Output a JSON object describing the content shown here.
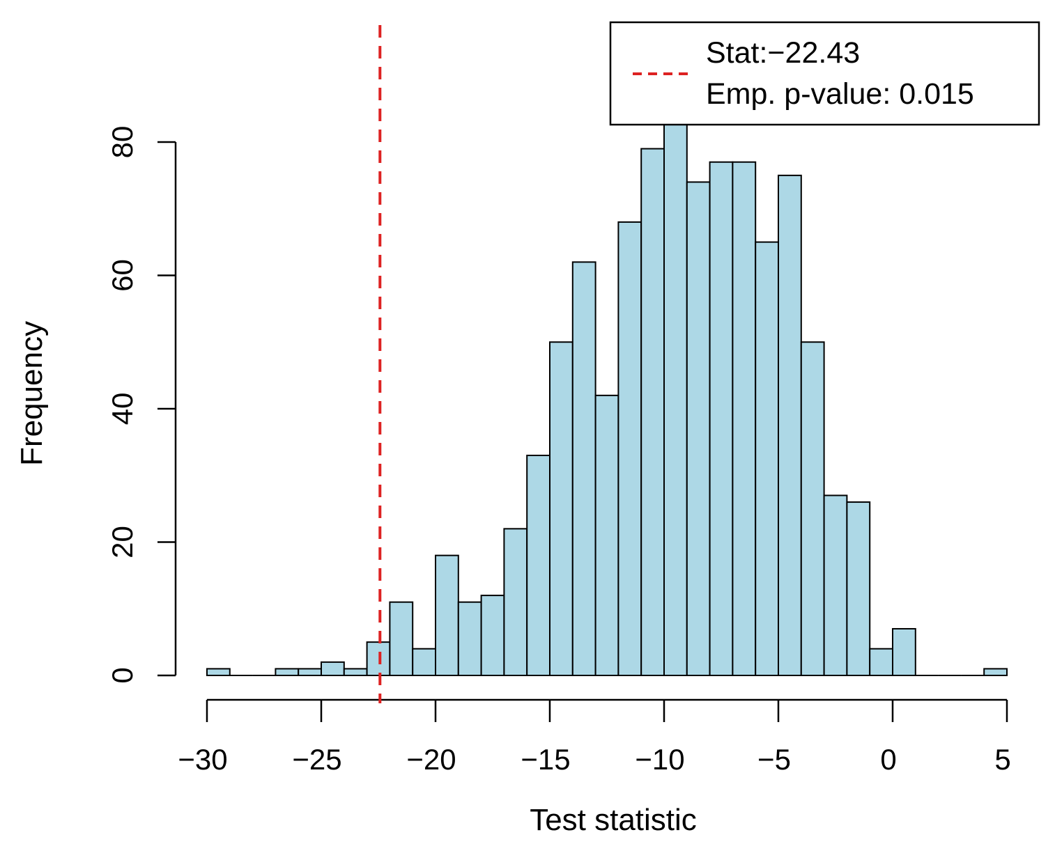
{
  "chart_data": {
    "type": "bar",
    "title": "",
    "xlabel": "Test statistic",
    "ylabel": "Frequency",
    "bin_width": 1,
    "bin_starts": [
      -30,
      -29,
      -28,
      -27,
      -26,
      -25,
      -24,
      -23,
      -22,
      -21,
      -20,
      -19,
      -18,
      -17,
      -16,
      -15,
      -14,
      -13,
      -12,
      -11,
      -10,
      -9,
      -8,
      -7,
      -6,
      -5,
      -4,
      -3,
      -2,
      -1,
      0,
      1,
      2,
      3,
      4
    ],
    "values": [
      1,
      0,
      0,
      1,
      1,
      2,
      1,
      5,
      11,
      4,
      18,
      11,
      12,
      22,
      33,
      50,
      62,
      42,
      68,
      79,
      84,
      74,
      77,
      77,
      65,
      75,
      50,
      27,
      26,
      4,
      7,
      0,
      0,
      0,
      1
    ],
    "xlim": [
      -30,
      5
    ],
    "ylim": [
      0,
      80
    ],
    "x_ticks": [
      -30,
      -25,
      -20,
      -15,
      -10,
      -5,
      0,
      5
    ],
    "x_tick_labels": [
      "−30",
      "−25",
      "−20",
      "−15",
      "−10",
      "−5",
      "0",
      "5"
    ],
    "y_ticks": [
      0,
      20,
      40,
      60,
      80
    ],
    "y_tick_labels": [
      "0",
      "20",
      "40",
      "60",
      "80"
    ],
    "bar_fill": "#add8e6",
    "bar_stroke": "#000000",
    "reference_line": {
      "x": -22.43,
      "color": "#dd2222",
      "style": "dashed"
    },
    "legend": {
      "position": "top-right",
      "line1": "Stat:−22.43",
      "line2": "Emp. p-value: 0.015"
    }
  }
}
